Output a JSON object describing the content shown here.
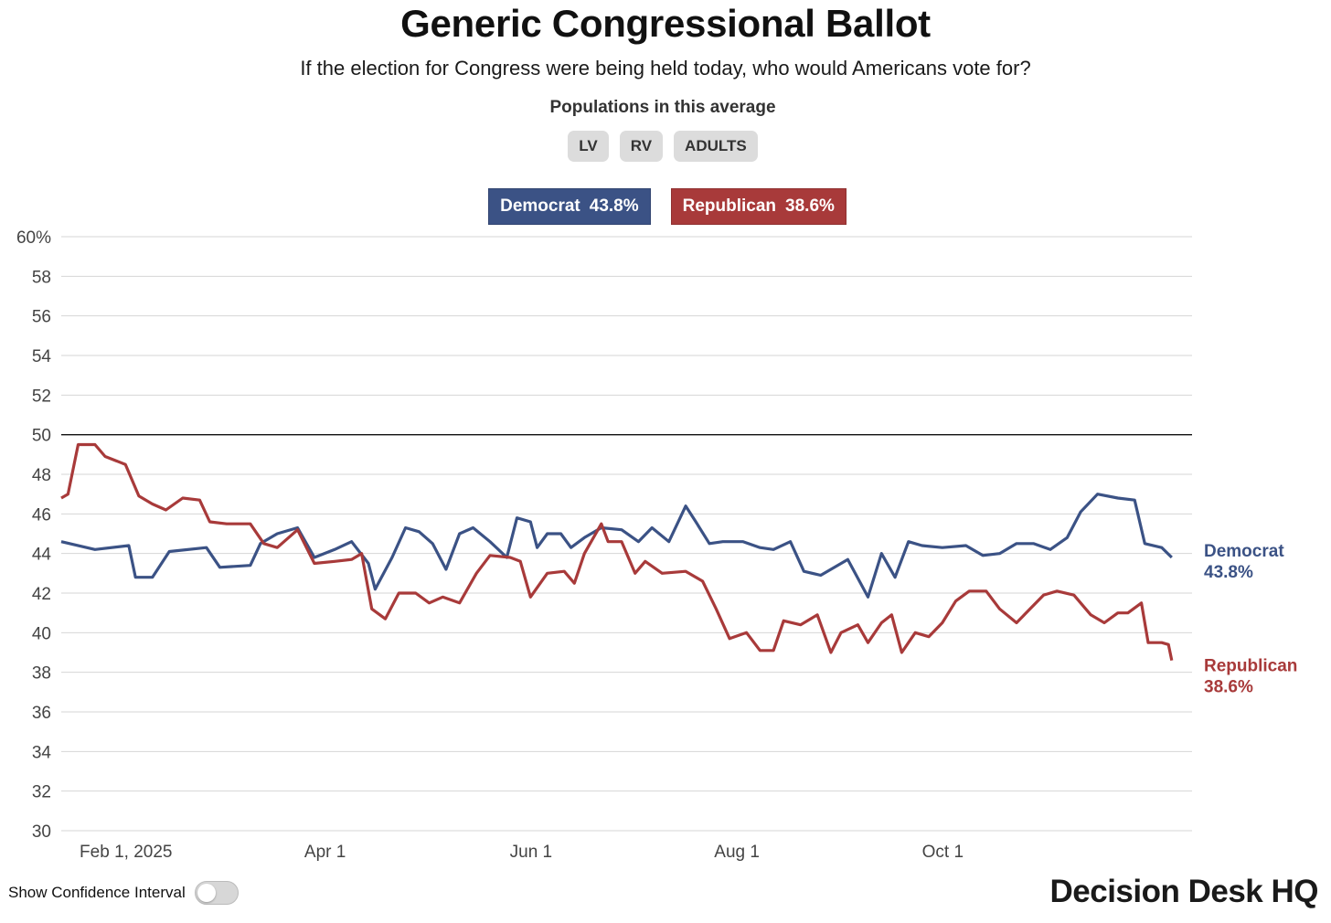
{
  "header": {
    "title": "Generic Congressional Ballot",
    "subtitle": "If the election for Congress were being held today, who would Americans vote for?",
    "populations_label": "Populations in this average",
    "populations": [
      "LV",
      "RV",
      "ADULTS"
    ]
  },
  "legend": {
    "dem": {
      "name": "Democrat",
      "value": "43.8%",
      "color": "#3b5285"
    },
    "rep": {
      "name": "Republican",
      "value": "38.6%",
      "color": "#a83a3a"
    }
  },
  "chart_data": {
    "type": "line",
    "x_type": "date",
    "x_range": [
      "2025-01-15",
      "2025-12-16"
    ],
    "ylim": [
      30,
      60
    ],
    "y_ticks": [
      30,
      32,
      34,
      36,
      38,
      40,
      42,
      44,
      46,
      48,
      50,
      52,
      54,
      56,
      58,
      60
    ],
    "y_tick_labels": [
      "30",
      "32",
      "34",
      "36",
      "38",
      "40",
      "42",
      "44",
      "46",
      "48",
      "50",
      "52",
      "54",
      "56",
      "58",
      "60%"
    ],
    "x_ticks": [
      {
        "date": "2025-02-01",
        "label": "Feb 1, 2025"
      },
      {
        "date": "2025-04-01",
        "label": "Apr 1"
      },
      {
        "date": "2025-06-01",
        "label": "Jun 1"
      },
      {
        "date": "2025-08-01",
        "label": "Aug 1"
      },
      {
        "date": "2025-10-01",
        "label": "Oct 1"
      }
    ],
    "reference_line": 50,
    "grid": true,
    "series": [
      {
        "name": "Democrat",
        "color": "#3b5285",
        "end_label": "43.8%",
        "points": [
          [
            "2025-01-15",
            44.6
          ],
          [
            "2025-01-25",
            44.2
          ],
          [
            "2025-02-04",
            44.4
          ],
          [
            "2025-02-06",
            42.8
          ],
          [
            "2025-02-11",
            42.8
          ],
          [
            "2025-02-16",
            44.1
          ],
          [
            "2025-02-27",
            44.3
          ],
          [
            "2025-03-03",
            43.3
          ],
          [
            "2025-03-12",
            43.4
          ],
          [
            "2025-03-15",
            44.5
          ],
          [
            "2025-03-20",
            45.0
          ],
          [
            "2025-03-26",
            45.3
          ],
          [
            "2025-03-31",
            43.8
          ],
          [
            "2025-04-06",
            44.2
          ],
          [
            "2025-04-11",
            44.6
          ],
          [
            "2025-04-16",
            43.5
          ],
          [
            "2025-04-18",
            42.2
          ],
          [
            "2025-04-23",
            43.8
          ],
          [
            "2025-04-27",
            45.3
          ],
          [
            "2025-05-01",
            45.1
          ],
          [
            "2025-05-05",
            44.5
          ],
          [
            "2025-05-09",
            43.2
          ],
          [
            "2025-05-13",
            45.0
          ],
          [
            "2025-05-17",
            45.3
          ],
          [
            "2025-05-22",
            44.6
          ],
          [
            "2025-05-27",
            43.8
          ],
          [
            "2025-05-30",
            45.8
          ],
          [
            "2025-06-03",
            45.6
          ],
          [
            "2025-06-05",
            44.3
          ],
          [
            "2025-06-08",
            45.0
          ],
          [
            "2025-06-12",
            45.0
          ],
          [
            "2025-06-15",
            44.3
          ],
          [
            "2025-06-19",
            44.8
          ],
          [
            "2025-06-24",
            45.3
          ],
          [
            "2025-06-30",
            45.2
          ],
          [
            "2025-07-05",
            44.6
          ],
          [
            "2025-07-09",
            45.3
          ],
          [
            "2025-07-14",
            44.6
          ],
          [
            "2025-07-19",
            46.4
          ],
          [
            "2025-07-22",
            45.6
          ],
          [
            "2025-07-26",
            44.5
          ],
          [
            "2025-07-30",
            44.6
          ],
          [
            "2025-08-05",
            44.6
          ],
          [
            "2025-08-10",
            44.3
          ],
          [
            "2025-08-14",
            44.2
          ],
          [
            "2025-08-19",
            44.6
          ],
          [
            "2025-08-23",
            43.1
          ],
          [
            "2025-08-28",
            42.9
          ],
          [
            "2025-09-05",
            43.7
          ],
          [
            "2025-09-11",
            41.8
          ],
          [
            "2025-09-15",
            44.0
          ],
          [
            "2025-09-19",
            42.8
          ],
          [
            "2025-09-23",
            44.6
          ],
          [
            "2025-09-27",
            44.4
          ],
          [
            "2025-10-03",
            44.3
          ],
          [
            "2025-10-10",
            44.4
          ],
          [
            "2025-10-15",
            43.9
          ],
          [
            "2025-10-20",
            44.0
          ],
          [
            "2025-10-25",
            44.5
          ],
          [
            "2025-10-30",
            44.5
          ],
          [
            "2025-11-04",
            44.2
          ],
          [
            "2025-11-09",
            44.8
          ],
          [
            "2025-11-13",
            46.1
          ],
          [
            "2025-11-18",
            47.0
          ],
          [
            "2025-11-24",
            46.8
          ],
          [
            "2025-11-29",
            46.7
          ],
          [
            "2025-12-02",
            44.5
          ],
          [
            "2025-12-07",
            44.3
          ],
          [
            "2025-12-10",
            43.8
          ]
        ]
      },
      {
        "name": "Republican",
        "color": "#a83a3a",
        "end_label": "38.6%",
        "points": [
          [
            "2025-01-15",
            46.8
          ],
          [
            "2025-01-17",
            47.0
          ],
          [
            "2025-01-20",
            49.5
          ],
          [
            "2025-01-25",
            49.5
          ],
          [
            "2025-01-28",
            48.9
          ],
          [
            "2025-02-03",
            48.5
          ],
          [
            "2025-02-07",
            46.9
          ],
          [
            "2025-02-11",
            46.5
          ],
          [
            "2025-02-15",
            46.2
          ],
          [
            "2025-02-20",
            46.8
          ],
          [
            "2025-02-25",
            46.7
          ],
          [
            "2025-02-28",
            45.6
          ],
          [
            "2025-03-05",
            45.5
          ],
          [
            "2025-03-12",
            45.5
          ],
          [
            "2025-03-16",
            44.5
          ],
          [
            "2025-03-20",
            44.3
          ],
          [
            "2025-03-26",
            45.2
          ],
          [
            "2025-03-31",
            43.5
          ],
          [
            "2025-04-06",
            43.6
          ],
          [
            "2025-04-11",
            43.7
          ],
          [
            "2025-04-14",
            44.0
          ],
          [
            "2025-04-17",
            41.2
          ],
          [
            "2025-04-21",
            40.7
          ],
          [
            "2025-04-25",
            42.0
          ],
          [
            "2025-04-30",
            42.0
          ],
          [
            "2025-05-04",
            41.5
          ],
          [
            "2025-05-08",
            41.8
          ],
          [
            "2025-05-13",
            41.5
          ],
          [
            "2025-05-18",
            43.0
          ],
          [
            "2025-05-22",
            43.9
          ],
          [
            "2025-05-28",
            43.8
          ],
          [
            "2025-05-31",
            43.6
          ],
          [
            "2025-06-03",
            41.8
          ],
          [
            "2025-06-08",
            43.0
          ],
          [
            "2025-06-13",
            43.1
          ],
          [
            "2025-06-16",
            42.5
          ],
          [
            "2025-06-19",
            44.0
          ],
          [
            "2025-06-24",
            45.5
          ],
          [
            "2025-06-26",
            44.6
          ],
          [
            "2025-06-30",
            44.6
          ],
          [
            "2025-07-04",
            43.0
          ],
          [
            "2025-07-07",
            43.6
          ],
          [
            "2025-07-12",
            43.0
          ],
          [
            "2025-07-19",
            43.1
          ],
          [
            "2025-07-24",
            42.6
          ],
          [
            "2025-07-28",
            41.2
          ],
          [
            "2025-08-01",
            39.7
          ],
          [
            "2025-08-06",
            40.0
          ],
          [
            "2025-08-10",
            39.1
          ],
          [
            "2025-08-14",
            39.1
          ],
          [
            "2025-08-17",
            40.6
          ],
          [
            "2025-08-22",
            40.4
          ],
          [
            "2025-08-27",
            40.9
          ],
          [
            "2025-08-31",
            39.0
          ],
          [
            "2025-09-03",
            40.0
          ],
          [
            "2025-09-08",
            40.4
          ],
          [
            "2025-09-11",
            39.5
          ],
          [
            "2025-09-15",
            40.5
          ],
          [
            "2025-09-18",
            40.9
          ],
          [
            "2025-09-21",
            39.0
          ],
          [
            "2025-09-25",
            40.0
          ],
          [
            "2025-09-29",
            39.8
          ],
          [
            "2025-10-03",
            40.5
          ],
          [
            "2025-10-07",
            41.6
          ],
          [
            "2025-10-11",
            42.1
          ],
          [
            "2025-10-16",
            42.1
          ],
          [
            "2025-10-20",
            41.2
          ],
          [
            "2025-10-25",
            40.5
          ],
          [
            "2025-10-29",
            41.2
          ],
          [
            "2025-11-02",
            41.9
          ],
          [
            "2025-11-06",
            42.1
          ],
          [
            "2025-11-11",
            41.9
          ],
          [
            "2025-11-16",
            40.9
          ],
          [
            "2025-11-20",
            40.5
          ],
          [
            "2025-11-24",
            41.0
          ],
          [
            "2025-11-27",
            41.0
          ],
          [
            "2025-12-01",
            41.5
          ],
          [
            "2025-12-03",
            39.5
          ],
          [
            "2025-12-07",
            39.5
          ],
          [
            "2025-12-09",
            39.4
          ],
          [
            "2025-12-10",
            38.6
          ]
        ]
      }
    ]
  },
  "footer": {
    "toggle_label": "Show Confidence Interval",
    "toggle_on": false,
    "logo_text": "Decision Desk HQ"
  }
}
